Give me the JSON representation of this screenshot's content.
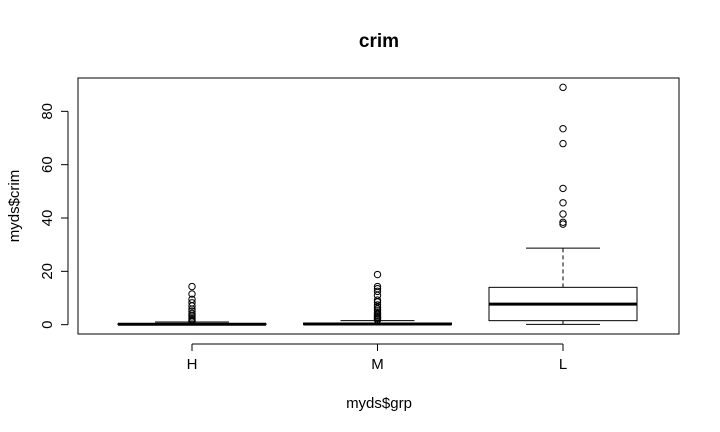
{
  "chart_data": {
    "type": "boxplot",
    "title": "crim",
    "xlabel": "myds$grp",
    "ylabel": "myds$crim",
    "categories": [
      "H",
      "M",
      "L"
    ],
    "y_ticks": [
      0,
      20,
      40,
      60,
      80
    ],
    "ylim": [
      -3.5,
      92.5
    ],
    "grid": false,
    "boxes": [
      {
        "category": "H",
        "min": 0.0,
        "q1": 0.05,
        "median": 0.15,
        "q3": 0.35,
        "max": 1.0,
        "outliers": [
          1.3,
          1.7,
          2.3,
          2.9,
          3.5,
          4.2,
          5.1,
          5.8,
          7.0,
          8.2,
          9.5,
          11.5,
          14.3
        ]
      },
      {
        "category": "M",
        "min": 0.0,
        "q1": 0.08,
        "median": 0.25,
        "q3": 0.6,
        "max": 1.5,
        "outliers": [
          1.8,
          2.2,
          2.6,
          3.0,
          3.5,
          4.0,
          4.5,
          5.2,
          5.9,
          6.6,
          7.4,
          8.5,
          9.2,
          11.0,
          12.5,
          13.5,
          14.3,
          18.8
        ]
      },
      {
        "category": "L",
        "min": 0.1,
        "q1": 1.5,
        "median": 7.7,
        "q3": 14.0,
        "max": 28.7,
        "outliers": [
          37.7,
          38.4,
          41.5,
          45.7,
          51.1,
          67.9,
          73.5,
          89.0
        ]
      }
    ]
  }
}
